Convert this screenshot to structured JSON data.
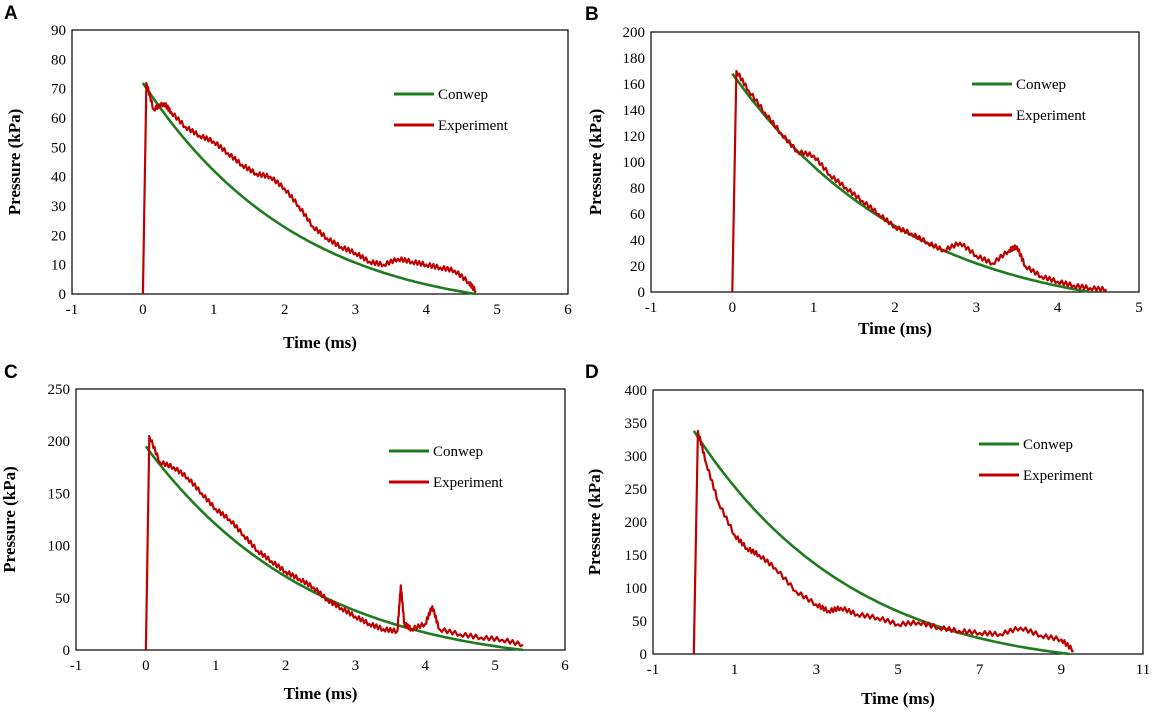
{
  "colors": {
    "conwep": "#1e7b1e",
    "experiment": "#c00000",
    "frame": "#000000"
  },
  "chart_data": [
    {
      "panel": "A",
      "type": "line",
      "xlabel": "Time (ms)",
      "ylabel": "Pressure (kPa)",
      "xlim": [
        -1,
        6
      ],
      "ylim": [
        0,
        90
      ],
      "xticks": [
        -1,
        0,
        1,
        2,
        3,
        4,
        5,
        6
      ],
      "yticks": [
        0,
        10,
        20,
        30,
        40,
        50,
        60,
        70,
        80,
        90
      ],
      "legend": [
        "Conwep",
        "Experiment"
      ],
      "series": [
        {
          "name": "Conwep",
          "kind": "decay",
          "peak": 72,
          "t0": 0,
          "td": 4.7,
          "b": 1.4
        },
        {
          "name": "Experiment",
          "x": [
            0,
            0.05,
            0.15,
            0.3,
            0.4,
            0.6,
            0.8,
            1.0,
            1.2,
            1.4,
            1.6,
            1.8,
            2.0,
            2.2,
            2.4,
            2.6,
            2.8,
            3.0,
            3.2,
            3.4,
            3.6,
            3.8,
            4.0,
            4.2,
            4.4,
            4.6,
            4.7
          ],
          "values": [
            0,
            72,
            63,
            65,
            62,
            57,
            54,
            52,
            48,
            44,
            41,
            40,
            36,
            30,
            23,
            19,
            16,
            14,
            11,
            10,
            12,
            11,
            10,
            9,
            8,
            4,
            1
          ]
        }
      ]
    },
    {
      "panel": "B",
      "type": "line",
      "xlabel": "Time (ms)",
      "ylabel": "Pressure (kPa)",
      "xlim": [
        -1,
        5
      ],
      "ylim": [
        0,
        200
      ],
      "xticks": [
        -1,
        0,
        1,
        2,
        3,
        4,
        5
      ],
      "yticks": [
        0,
        20,
        40,
        60,
        80,
        100,
        120,
        140,
        160,
        180,
        200
      ],
      "legend": [
        "Conwep",
        "Experiment"
      ],
      "series": [
        {
          "name": "Conwep",
          "kind": "decay",
          "peak": 168,
          "t0": 0,
          "td": 4.4,
          "b": 1.3
        },
        {
          "name": "Experiment",
          "x": [
            0,
            0.05,
            0.2,
            0.4,
            0.6,
            0.8,
            1.0,
            1.2,
            1.4,
            1.6,
            1.8,
            2.0,
            2.2,
            2.4,
            2.6,
            2.8,
            3.0,
            3.2,
            3.4,
            3.5,
            3.6,
            3.8,
            4.0,
            4.2,
            4.4,
            4.6
          ],
          "values": [
            0,
            170,
            155,
            138,
            122,
            108,
            105,
            90,
            80,
            70,
            60,
            50,
            45,
            38,
            32,
            38,
            28,
            22,
            32,
            35,
            20,
            12,
            8,
            5,
            3,
            2
          ]
        }
      ]
    },
    {
      "panel": "C",
      "type": "line",
      "xlabel": "Time (ms)",
      "ylabel": "Pressure (kPa)",
      "xlim": [
        -1,
        6
      ],
      "ylim": [
        0,
        250
      ],
      "xticks": [
        -1,
        0,
        1,
        2,
        3,
        4,
        5,
        6
      ],
      "yticks": [
        0,
        50,
        100,
        150,
        200,
        250
      ],
      "legend": [
        "Conwep",
        "Experiment"
      ],
      "series": [
        {
          "name": "Conwep",
          "kind": "decay",
          "peak": 195,
          "t0": 0,
          "td": 5.4,
          "b": 1.5
        },
        {
          "name": "Experiment",
          "x": [
            0,
            0.05,
            0.2,
            0.4,
            0.6,
            0.8,
            1.0,
            1.2,
            1.4,
            1.6,
            1.8,
            2.0,
            2.2,
            2.4,
            2.6,
            2.8,
            3.0,
            3.2,
            3.4,
            3.6,
            3.65,
            3.7,
            3.8,
            4.0,
            4.1,
            4.2,
            4.5,
            4.8,
            5.1,
            5.4
          ],
          "values": [
            0,
            205,
            180,
            175,
            165,
            150,
            135,
            125,
            110,
            95,
            85,
            75,
            68,
            60,
            48,
            40,
            32,
            25,
            20,
            18,
            62,
            25,
            20,
            25,
            42,
            20,
            15,
            12,
            10,
            5
          ]
        }
      ]
    },
    {
      "panel": "D",
      "type": "line",
      "xlabel": "Time (ms)",
      "ylabel": "Pressure (kPa)",
      "xlim": [
        -1,
        11
      ],
      "ylim": [
        0,
        400
      ],
      "xticks": [
        -1,
        1,
        3,
        5,
        7,
        9,
        11
      ],
      "yticks": [
        0,
        50,
        100,
        150,
        200,
        250,
        300,
        350,
        400
      ],
      "legend": [
        "Conwep",
        "Experiment"
      ],
      "series": [
        {
          "name": "Conwep",
          "kind": "decay",
          "peak": 338,
          "t0": 0,
          "td": 9.2,
          "b": 1.6
        },
        {
          "name": "Experiment",
          "x": [
            0,
            0.1,
            0.3,
            0.6,
            1.0,
            1.3,
            1.6,
            2.0,
            2.5,
            3.0,
            3.3,
            3.6,
            4.0,
            4.5,
            5.0,
            5.5,
            6.0,
            6.5,
            7.0,
            7.5,
            8.0,
            8.5,
            9.0,
            9.3
          ],
          "values": [
            0,
            338,
            290,
            230,
            180,
            160,
            150,
            130,
            95,
            75,
            65,
            70,
            60,
            55,
            45,
            48,
            40,
            35,
            32,
            30,
            40,
            28,
            22,
            5
          ]
        }
      ]
    }
  ]
}
